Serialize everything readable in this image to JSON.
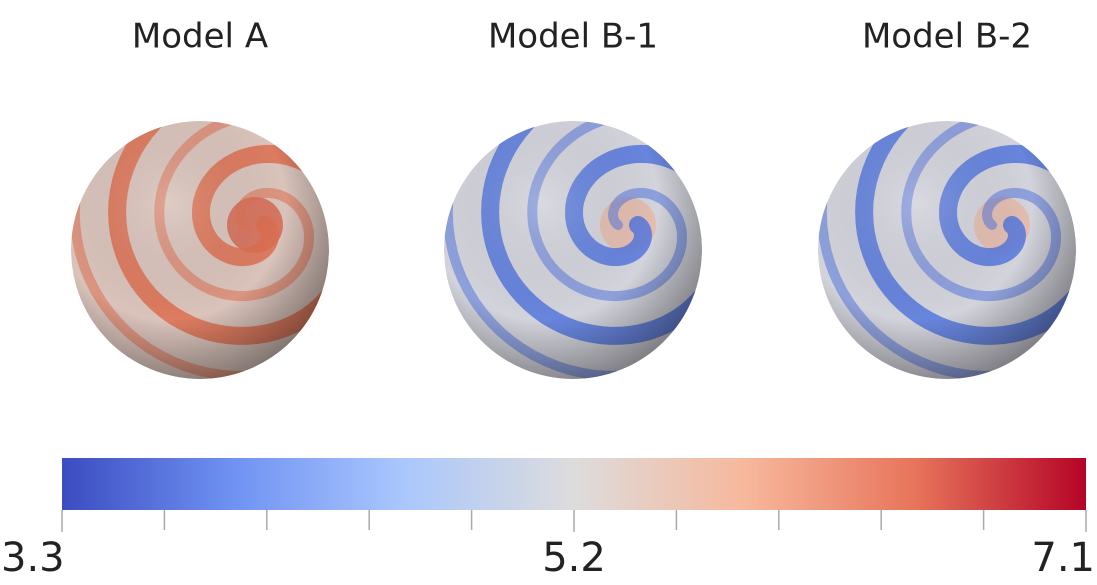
{
  "panels": [
    {
      "title": "Model A"
    },
    {
      "title": "Model B-1"
    },
    {
      "title": "Model B-2"
    }
  ],
  "colorbar": {
    "range": [
      3.3,
      7.1
    ],
    "ticks": [
      3.3,
      5.2,
      7.1
    ],
    "colors": [
      "#3b4cc0",
      "#6f92f3",
      "#aac7fd",
      "#dddcdc",
      "#f7b89c",
      "#e7745b",
      "#b40426"
    ]
  }
}
